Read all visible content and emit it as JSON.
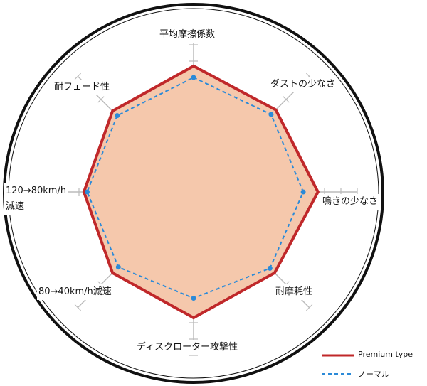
{
  "chart_data": {
    "type": "radar",
    "categories": [
      "平均摩擦係数",
      "ダストの少なさ",
      "鳴きの少なさ",
      "耐摩耗性",
      "ディスクローター攻撃性",
      "80→40km/h減速",
      "120→80km/h\n減速",
      "耐フェード性"
    ],
    "rlim": [
      0,
      10
    ],
    "rticks": [
      1,
      2,
      3,
      4,
      5,
      6,
      7,
      8,
      9,
      10
    ],
    "series": [
      {
        "name": "Premium type",
        "color": "#c0282a",
        "fill": "#f5c8ac",
        "dashed": false,
        "markers": false,
        "values": [
          7.7,
          7.1,
          7.6,
          7.0,
          7.7,
          7.0,
          6.7,
          7.0
        ]
      },
      {
        "name": "ノーマル",
        "color": "#2b8ad8",
        "dashed": true,
        "markers": true,
        "values": [
          7.0,
          6.7,
          6.7,
          6.6,
          6.5,
          6.5,
          6.5,
          6.6
        ]
      }
    ]
  }
}
